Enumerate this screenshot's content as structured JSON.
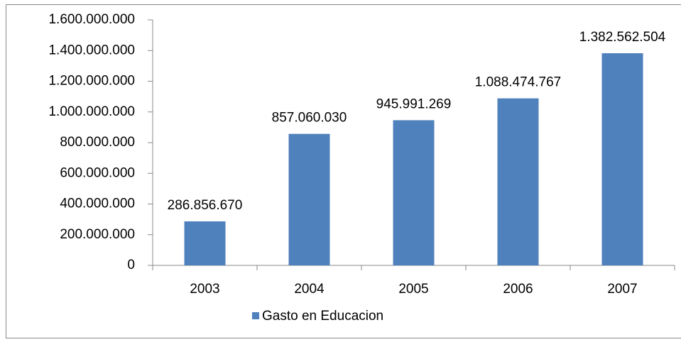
{
  "chart_data": {
    "type": "bar",
    "categories": [
      "2003",
      "2004",
      "2005",
      "2006",
      "2007"
    ],
    "series": [
      {
        "name": "Gasto en Educacion",
        "color": "#4f81bd",
        "values": [
          286856670,
          857060030,
          945991269,
          1088474767,
          1382562504
        ],
        "value_labels": [
          "286.856.670",
          "857.060.030",
          "945.991.269",
          "1.088.474.767",
          "1.382.562.504"
        ]
      }
    ],
    "ylim": [
      0,
      1600000000
    ],
    "yticks": [
      {
        "value": 0,
        "label": "0"
      },
      {
        "value": 200000000,
        "label": "200.000.000"
      },
      {
        "value": 400000000,
        "label": "400.000.000"
      },
      {
        "value": 600000000,
        "label": "600.000.000"
      },
      {
        "value": 800000000,
        "label": "800.000.000"
      },
      {
        "value": 1000000000,
        "label": "1.000.000.000"
      },
      {
        "value": 1200000000,
        "label": "1.200.000.000"
      },
      {
        "value": 1400000000,
        "label": "1.400.000.000"
      },
      {
        "value": 1600000000,
        "label": "1.600.000.000"
      }
    ],
    "grid": false,
    "legend": "bottom"
  }
}
